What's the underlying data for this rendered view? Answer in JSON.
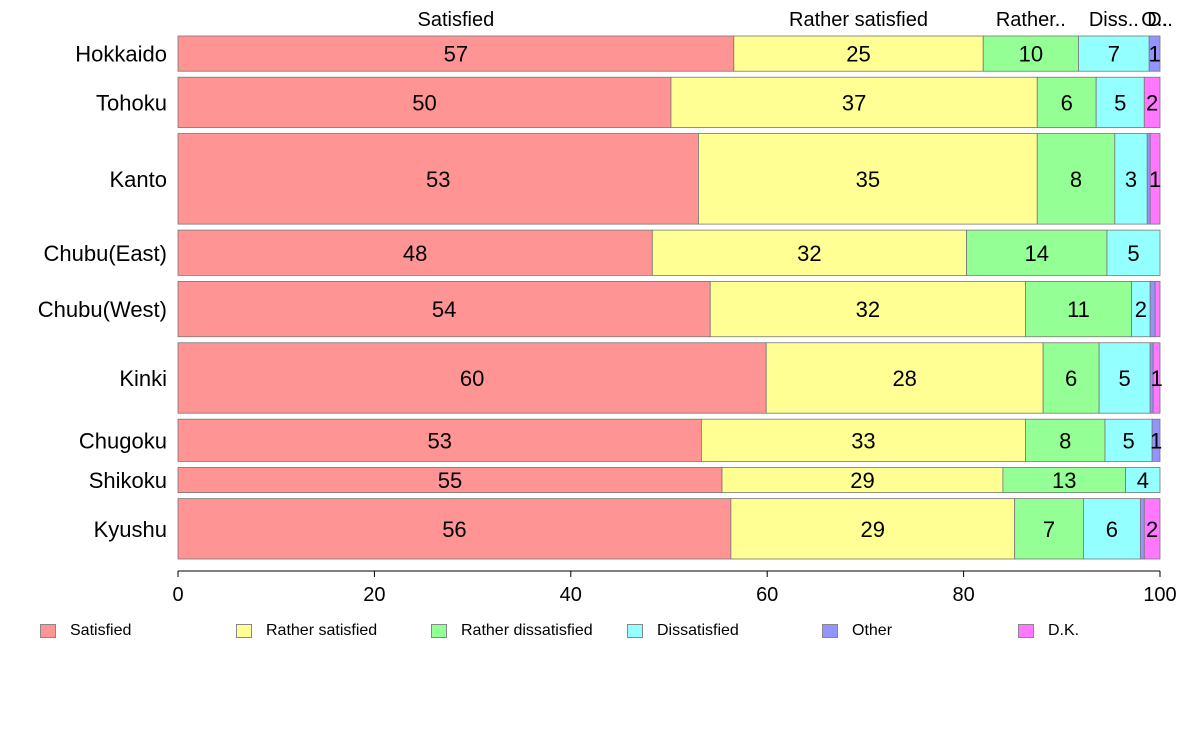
{
  "chart_data": {
    "type": "bar",
    "orientation": "horizontal",
    "stacked": true,
    "variable_height_bars": true,
    "categories": [
      "Hokkaido",
      "Tohoku",
      "Kanto",
      "Chubu(East)",
      "Chubu(West)",
      "Kinki",
      "Chugoku",
      "Shikoku",
      "Kyushu"
    ],
    "series": [
      {
        "name": "Satisfied",
        "color": "#ff9494",
        "values": [
          56.6,
          50.2,
          53.0,
          48.3,
          54.2,
          59.9,
          53.3,
          55.4,
          56.3
        ],
        "labels": [
          "57",
          "50",
          "53",
          "48",
          "54",
          "60",
          "53",
          "55",
          "56"
        ]
      },
      {
        "name": "Rather satisfied",
        "color": "#ffff94",
        "values": [
          25.4,
          37.3,
          34.5,
          32.0,
          32.1,
          28.2,
          33.0,
          28.6,
          28.9
        ],
        "labels": [
          "25",
          "37",
          "35",
          "32",
          "32",
          "28",
          "33",
          "29",
          "29"
        ]
      },
      {
        "name": "Rather dissatisfied",
        "color": "#94ff94",
        "values": [
          9.7,
          6.0,
          7.9,
          14.3,
          10.8,
          5.7,
          8.1,
          12.5,
          7.0
        ],
        "labels": [
          "10",
          "6",
          "8",
          "14",
          "11",
          "6",
          "8",
          "13",
          "7"
        ]
      },
      {
        "name": "Dissatisfied",
        "color": "#94ffff",
        "values": [
          7.2,
          4.9,
          3.3,
          5.4,
          1.9,
          5.2,
          4.8,
          3.5,
          5.8
        ],
        "labels": [
          "7",
          "5",
          "3",
          "5",
          "2",
          "5",
          "5",
          "4",
          "6"
        ]
      },
      {
        "name": "Other",
        "color": "#9494ff",
        "values": [
          1.1,
          0.0,
          0.3,
          0.0,
          0.5,
          0.3,
          0.8,
          0.0,
          0.4
        ],
        "labels": [
          "1",
          "",
          "",
          "",
          "",
          "",
          "1",
          "",
          ""
        ]
      },
      {
        "name": "D.K.",
        "color": "#ff78ff",
        "values": [
          0.0,
          1.6,
          1.0,
          0.0,
          0.5,
          0.7,
          0.0,
          0.0,
          1.6
        ],
        "labels": [
          "",
          "2",
          "1",
          "",
          "",
          "1",
          "",
          "",
          "2"
        ]
      }
    ],
    "top_labels": [
      "Satisfied",
      "Rather satisfied",
      "Rather..",
      "Diss..",
      "O..",
      "D.."
    ],
    "bar_weights": [
      3.5,
      5.0,
      9.0,
      4.5,
      5.5,
      7.0,
      4.2,
      2.5,
      6.0
    ],
    "xlim": [
      0,
      100
    ],
    "xticks": [
      0,
      20,
      40,
      60,
      80,
      100
    ],
    "legend": {
      "position": "bottom"
    }
  }
}
